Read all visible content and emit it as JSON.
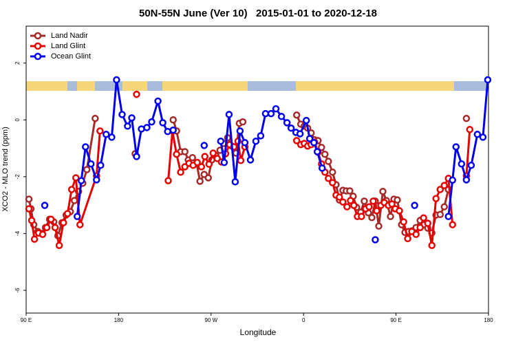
{
  "chart_data": {
    "type": "line",
    "title": "50N-55N June (Ver 10)   2015-01-01 to 2020-12-18",
    "xlabel": "Longitude",
    "ylabel": "XCO2 - MLO trend (ppm)",
    "xlim": [
      90,
      540
    ],
    "ylim": [
      -6.8,
      3.3
    ],
    "xticks": [
      {
        "value": 90,
        "label": "90 E"
      },
      180,
      {
        "value": 270,
        "label": "90 W"
      },
      {
        "value": 360,
        "label": "0"
      },
      {
        "value": 450,
        "label": "90 E"
      },
      {
        "value": 540,
        "label": "180"
      }
    ],
    "yticks": [
      -6,
      -4,
      -2,
      0,
      2
    ],
    "legend": "upper left",
    "series": [
      {
        "name": "Land Nadir",
        "color": "#a52a2a",
        "x": [
          92.7,
          94.7,
          97.4,
          101.4,
          104.8,
          108.8,
          112.8,
          116.9,
          120.9,
          124.9,
          128.9,
          133.0,
          137.0,
          141.0,
          145.1,
          149.1,
          157.2,
          null,
          196.1,
          null,
          233.1,
          236.4,
          240.4,
          244.5,
          247.8,
          251.9,
          255.9,
          259.2,
          263.3,
          267.3,
          270.7,
          274.7,
          278.7,
          282.1,
          286.1,
          290.1,
          294.2,
          297.5,
          300.9,
          null,
          353.3,
          357.3,
          360.7,
          364.0,
          367.4,
          370.7,
          374.1,
          377.5,
          380.8,
          384.2,
          388.2,
          391.6,
          394.9,
          398.3,
          401.6,
          405.0,
          408.3,
          411.7,
          415.7,
          419.1,
          423.1,
          426.5,
          429.8,
          433.2,
          437.2,
          440.6,
          444.6,
          448.0,
          451.3,
          455.4,
          458.7,
          462.1,
          465.4,
          469.5,
          473.5,
          476.8,
          480.9,
          484.9,
          488.9,
          493.0,
          497.0,
          501.0,
          null,
          518.5
        ],
        "values": [
          -2.79,
          -3.13,
          -3.69,
          -3.93,
          -4.0,
          -3.79,
          -3.5,
          -3.59,
          -4.08,
          -3.62,
          -3.35,
          -3.23,
          -2.84,
          -2.52,
          -2.23,
          -1.75,
          0.05,
          null,
          -1.19,
          null,
          0.0,
          -0.39,
          -1.12,
          -1.12,
          -1.41,
          -1.33,
          -1.53,
          -2.16,
          -1.92,
          -2.04,
          -1.41,
          -1.26,
          -1.07,
          -0.83,
          -0.63,
          -0.92,
          -1.17,
          -0.12,
          -0.07,
          null,
          0.17,
          -0.15,
          -0.22,
          -0.29,
          -0.46,
          -0.7,
          -0.73,
          -0.97,
          -1.21,
          -1.46,
          -1.84,
          -2.28,
          -2.82,
          -2.48,
          -2.5,
          -2.5,
          -2.69,
          -3.08,
          -3.25,
          -2.86,
          -3.27,
          -3.44,
          -2.86,
          -3.74,
          -2.52,
          -2.84,
          -3.4,
          -2.79,
          -2.82,
          -3.69,
          -3.96,
          -3.93,
          -3.91,
          -3.79,
          -3.54,
          -3.69,
          -3.81,
          -3.98,
          -3.35,
          -3.33,
          -3.06,
          -2.45,
          null,
          0.05
        ]
      },
      {
        "name": "Land Glint",
        "color": "#e60000",
        "x": [
          92.7,
          95.4,
          98.1,
          102.1,
          106.1,
          110.1,
          114.2,
          118.2,
          122.2,
          126.3,
          130.3,
          134.3,
          138.4,
          142.4,
          158.5,
          161.9,
          null,
          197.5,
          null,
          228.3,
          232.4,
          236.4,
          240.4,
          244.5,
          248.5,
          252.5,
          256.6,
          260.6,
          263.9,
          268.0,
          272.0,
          276.0,
          280.1,
          284.1,
          288.1,
          292.2,
          296.2,
          298.9,
          302.9,
          null,
          353.3,
          357.3,
          360.7,
          364.0,
          367.4,
          370.7,
          374.1,
          377.5,
          380.8,
          384.2,
          388.2,
          391.6,
          394.9,
          398.3,
          402.3,
          405.7,
          409.0,
          412.4,
          416.4,
          420.4,
          423.8,
          427.8,
          431.2,
          435.2,
          438.6,
          442.6,
          446.0,
          449.3,
          453.3,
          457.4,
          461.4,
          465.4,
          469.5,
          473.5,
          476.8,
          480.9,
          484.9,
          488.9,
          493.0,
          497.0,
          501.0,
          505.0,
          null,
          518.5,
          521.8
        ],
        "values": [
          -3.13,
          -3.54,
          -4.2,
          -3.98,
          -4.03,
          -3.79,
          -3.5,
          -3.79,
          -4.42,
          -3.62,
          -3.3,
          -2.45,
          -2.04,
          -3.69,
          -1.97,
          -0.39,
          null,
          0.9,
          null,
          -2.14,
          -0.39,
          -1.21,
          -1.84,
          -1.65,
          -1.53,
          -1.6,
          -1.5,
          -1.65,
          -1.29,
          -1.56,
          -1.17,
          -1.36,
          -1.48,
          -1.19,
          -0.87,
          -0.95,
          -0.75,
          -1.43,
          -0.95,
          null,
          -0.73,
          -0.87,
          -0.83,
          -0.92,
          -0.87,
          -0.78,
          -1.14,
          -1.55,
          -1.84,
          -2.06,
          -2.21,
          -2.65,
          -2.72,
          -2.89,
          -3.06,
          -2.84,
          -3.01,
          -3.4,
          -3.4,
          -3.13,
          -3.06,
          -2.86,
          -3.2,
          -3.01,
          -2.91,
          -3.01,
          -2.96,
          -3.13,
          -3.2,
          -3.59,
          -4.18,
          -3.93,
          -4.03,
          -3.79,
          -3.45,
          -3.64,
          -4.42,
          -2.77,
          -2.45,
          -2.31,
          -2.06,
          -3.69,
          null,
          -1.97,
          -0.34
        ]
      },
      {
        "name": "Ocean Glint",
        "color": "#0000ee",
        "x": [
          108.1,
          null,
          139.7,
          143.7,
          147.8,
          153.1,
          158.5,
          162.5,
          167.9,
          173.3,
          178.0,
          183.4,
          188.7,
          192.8,
          197.5,
          202.2,
          207.5,
          212.2,
          218.3,
          223.0,
          227.7,
          233.1,
          null,
          263.3,
          null,
          279.4,
          282.8,
          287.5,
          293.5,
          298.2,
          302.9,
          308.3,
          313.6,
          318.3,
          323.0,
          328.4,
          333.1,
          338.5,
          343.9,
          347.9,
          352.6,
          356.6,
          362.7,
          366.0,
          370.1,
          373.4,
          378.1,
          null,
          429.8,
          null,
          468.1,
          null,
          501.0,
          505.0,
          508.4,
          513.8,
          518.5,
          523.2,
          529.2,
          534.6,
          539.3
        ],
        "values": [
          -3.01,
          null,
          -3.4,
          -2.14,
          -0.95,
          -1.55,
          -2.11,
          -1.6,
          -0.51,
          -0.61,
          1.41,
          0.19,
          -0.22,
          0.07,
          -1.29,
          -0.32,
          -0.27,
          -0.07,
          0.66,
          -0.1,
          -0.41,
          -0.36,
          null,
          -0.9,
          null,
          -0.75,
          -1.5,
          0.19,
          -2.18,
          -0.39,
          -0.8,
          -1.41,
          -0.75,
          -0.56,
          0.22,
          0.22,
          0.39,
          0.12,
          -0.1,
          -0.29,
          -0.44,
          -0.49,
          -0.02,
          -0.66,
          -0.8,
          -1.12,
          -1.7,
          null,
          -4.22,
          null,
          -3.01,
          null,
          -3.4,
          -2.12,
          -0.95,
          -1.55,
          -2.11,
          -1.6,
          -0.51,
          -0.61,
          1.41
        ]
      }
    ]
  }
}
